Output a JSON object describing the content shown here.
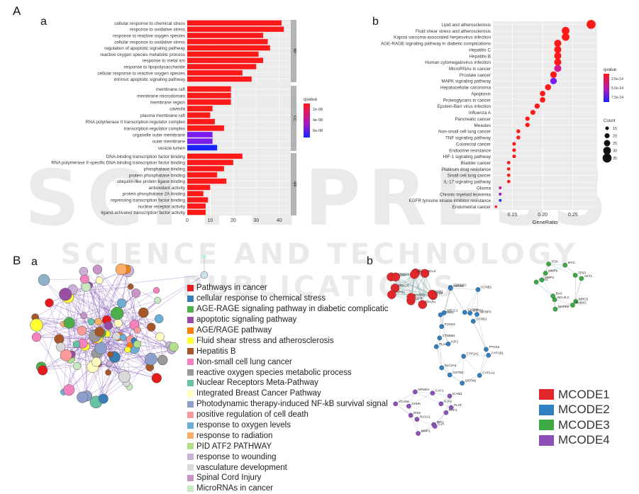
{
  "labels": {
    "A": "A",
    "Aa": "a",
    "Ab": "b",
    "B": "B",
    "Ba": "a",
    "Bb": "b"
  },
  "watermark": {
    "line1": "SCITEPRESS",
    "line2": "SCIENCE AND TECHNOLOGY PUBLICATIONS"
  },
  "chart_data": [
    {
      "type": "bar",
      "title": "",
      "groups": [
        {
          "name": "BP",
          "categories": [
            "cellular response to chemical stress",
            "response to oxidative stress",
            "response to reactive oxygen species",
            "cellular response to oxidative stress",
            "regulation of apoptotic signaling pathway",
            "reactive oxygen species metabolic process",
            "response to metal ion",
            "response to lipopolysaccharide",
            "cellular response to reactive oxygen species",
            "intrinsic apoptotic signaling pathway"
          ],
          "values": [
            41,
            42,
            33,
            35,
            36,
            31,
            33,
            30,
            24,
            28
          ],
          "colors": [
            "#ff1a1a",
            "#ff1a1a",
            "#ff1a1a",
            "#ff1a1a",
            "#ff1a1a",
            "#ff1a1a",
            "#ff1a1a",
            "#ff1a1a",
            "#ff1a1a",
            "#ff1a1a"
          ]
        },
        {
          "name": "CC",
          "categories": [
            "membrane raft",
            "membrane microdomain",
            "membrane region",
            "caveola",
            "plasma membrane raft",
            "RNA polymerase II transcription regulator complex",
            "transcription regulator complex",
            "organelle outer membrane",
            "outer membrane",
            "vesicle lumen"
          ],
          "values": [
            19,
            19,
            19,
            11,
            10,
            12,
            16,
            11,
            11,
            13
          ],
          "colors": [
            "#ff1a1a",
            "#ff1a1a",
            "#ff1a1a",
            "#ff1a1a",
            "#ff1a1a",
            "#ff1a1a",
            "#ff1a1a",
            "#7a1cf0",
            "#7a1cf0",
            "#1a24ff"
          ]
        },
        {
          "name": "MF",
          "categories": [
            "DNA-binding transcription factor binding",
            "RNA polymerase II-specific DNA-binding transcription factor binding",
            "phosphatase binding",
            "protein phosphatase binding",
            "ubiquitin-like protein ligase binding",
            "antioxidant activity",
            "protein phosphatase 2A binding",
            "repressing transcription factor binding",
            "nuclear receptor activity",
            "ligand-activated transcription factor activity"
          ],
          "values": [
            24,
            20,
            16,
            13,
            17,
            10,
            7,
            9,
            8,
            8
          ],
          "colors": [
            "#ff1a1a",
            "#ff1a1a",
            "#ff1a1a",
            "#ff1a1a",
            "#ff1a1a",
            "#ff1a1a",
            "#ff1a1a",
            "#ff1a1a",
            "#ff1a1a",
            "#ff1a1a"
          ]
        }
      ],
      "xticks": [
        0,
        10,
        20,
        30,
        40
      ],
      "xlim": [
        0,
        45
      ],
      "legend": {
        "title": "qvalue",
        "ticks": [
          "2e-08",
          "4e-08",
          "6e-08"
        ]
      },
      "grid": true
    },
    {
      "type": "scatter",
      "title": "",
      "xlabel": "GeneRatio",
      "xticks": [
        0.15,
        0.2,
        0.25
      ],
      "xtick_labels": [
        "0.15",
        "0.20",
        "0.25"
      ],
      "xlim": [
        0.118,
        0.29
      ],
      "categories": [
        "Lipid and atherosclerosis",
        "Fluid shear stress and atherosclerosis",
        "Kaposi sarcoma-associated herpesvirus infection",
        "AGE-RAGE signaling pathway in diabetic complications",
        "Hepatitis C",
        "Hepatitis B",
        "Human cytomegalovirus infection",
        "MicroRNAs in cancer",
        "Prostate cancer",
        "MAPK signaling pathway",
        "Hepatocellular carcinoma",
        "Apoptosis",
        "Proteoglycans in cancer",
        "Epstein-Barr virus infection",
        "Influenza A",
        "Pancreatic cancer",
        "Measles",
        "Non-small cell lung cancer",
        "TNF signaling pathway",
        "Colorectal cancer",
        "Endocrine resistance",
        "HIF-1 signaling pathway",
        "Bladder cancer",
        "Platinum drug resistance",
        "Small cell lung cancer",
        "IL-17 signaling pathway",
        "Glioma",
        "Chronic myeloid leukemia",
        "EGFR tyrosine kinase inhibitor resistance",
        "Endometrial cancer"
      ],
      "x": [
        0.28,
        0.238,
        0.238,
        0.225,
        0.225,
        0.225,
        0.225,
        0.225,
        0.218,
        0.218,
        0.209,
        0.2,
        0.2,
        0.191,
        0.184,
        0.175,
        0.175,
        0.16,
        0.16,
        0.153,
        0.153,
        0.153,
        0.144,
        0.144,
        0.144,
        0.144,
        0.13,
        0.13,
        0.13,
        0.123
      ],
      "count": [
        35,
        30,
        30,
        28,
        28,
        28,
        28,
        28,
        26,
        26,
        24,
        22,
        22,
        21,
        20,
        18,
        18,
        16,
        16,
        15,
        15,
        15,
        14,
        14,
        14,
        14,
        12,
        12,
        12,
        11
      ],
      "colors": [
        "#ff1a1a",
        "#ff1a1a",
        "#ff1a1a",
        "#ff1a1a",
        "#ff1a1a",
        "#ff1a1a",
        "#ff1a1a",
        "#d81b94",
        "#ff1a1a",
        "#7a1cf0",
        "#ff1a1a",
        "#ff1a1a",
        "#ff1a1a",
        "#ff1a1a",
        "#ff1a1a",
        "#ff1a1a",
        "#ff1a1a",
        "#ff1a1a",
        "#ff1a1a",
        "#ff1a1a",
        "#ff1a1a",
        "#ff1a1a",
        "#ff1a1a",
        "#ff1a1a",
        "#ff1a1a",
        "#ff1a1a",
        "#c0158f",
        "#9b18c8",
        "#2238ee",
        "#ff1a1a"
      ],
      "legend": {
        "qtitle": "qvalue",
        "qticks": [
          "2.5e-14",
          "5.0e-14",
          "7.5e-14"
        ],
        "ctitle": "Count",
        "cticks": [
          15,
          20,
          25,
          30,
          35
        ]
      }
    }
  ],
  "network_legend": {
    "items": [
      {
        "label": "Pathways in cancer",
        "color": "#e41a1c"
      },
      {
        "label": "cellular response to chemical stress",
        "color": "#377eb8"
      },
      {
        "label": "AGE-RAGE signaling pathway in diabetic complicatic",
        "color": "#4daf4a"
      },
      {
        "label": "apoptotic signaling pathway",
        "color": "#984ea3"
      },
      {
        "label": "AGE/RAGE pathway",
        "color": "#ff7f00"
      },
      {
        "label": "Fluid shear stress and atherosclerosis",
        "color": "#ffff33"
      },
      {
        "label": "Hepatitis B",
        "color": "#a65628"
      },
      {
        "label": "Non-small cell lung cancer",
        "color": "#f781bf"
      },
      {
        "label": "reactive oxygen species metabolic process",
        "color": "#999999"
      },
      {
        "label": "Nuclear Receptors Meta-Pathway",
        "color": "#66c2a5"
      },
      {
        "label": "Integrated Breast Cancer Pathway",
        "color": "#fffdbf"
      },
      {
        "label": "Photodynamic therapy-induced NF-kB survival signal",
        "color": "#8da0cb"
      },
      {
        "label": "positive regulation of cell death",
        "color": "#fb9a99"
      },
      {
        "label": "response to oxygen levels",
        "color": "#6baed6"
      },
      {
        "label": "response to radiation",
        "color": "#fdae6b"
      },
      {
        "label": "PID ATF2 PATHWAY",
        "color": "#b2df8a"
      },
      {
        "label": "response to wounding",
        "color": "#cab2d6"
      },
      {
        "label": "vasculature development",
        "color": "#d9d9d9"
      },
      {
        "label": "Spinal Cord Injury",
        "color": "#c994c7"
      },
      {
        "label": "MicroRNAs in cancer",
        "color": "#c7e9c0"
      }
    ]
  },
  "mcode": {
    "items": [
      {
        "label": "MCODE1",
        "color": "#e3262c"
      },
      {
        "label": "MCODE2",
        "color": "#2f7fc1"
      },
      {
        "label": "MCODE3",
        "color": "#3ca944"
      },
      {
        "label": "MCODE4",
        "color": "#8e4fb8"
      }
    ],
    "clusters": [
      {
        "name": "MCODE1",
        "color": "#e3262c",
        "genes": [
          "IL1B",
          "PPARA",
          "EGFR",
          "MAPK3",
          "PRKCB",
          "HSPB1",
          "MAPK1",
          "CASP3",
          "JUN",
          "HIF1A",
          "BCL2",
          "ESR1"
        ]
      },
      {
        "name": "MCODE2",
        "color": "#2f7fc1",
        "genes": [
          "CYP1B1",
          "CYP1A2",
          "CYP1A1",
          "GSTM2",
          "GSTM1",
          "SLC2A4",
          "PLAU",
          "CTNNB1",
          "IGF1",
          "ERBB2",
          "FOXO1",
          "XRCC1",
          "CDKN1C",
          "ABCB1",
          "CASP9",
          "CCNB1",
          "GSTP1",
          "IGFBP3",
          "CCND1",
          "PTGS2"
        ]
      },
      {
        "name": "MCODE3",
        "color": "#3ca944",
        "genes": [
          "BIRC5",
          "RUNX2",
          "MAPK8",
          "BCL2L1",
          "BAX",
          "CDH1",
          "MMP2",
          "MMP9",
          "FOS",
          "MYC",
          "TP53",
          "AKT1"
        ]
      },
      {
        "name": "MCODE4",
        "color": "#8e4fb8",
        "genes": [
          "RAF1",
          "IRF1",
          "IL1A",
          "MMP1",
          "RASA1",
          "IRS2",
          "VCAM1",
          "CHUK",
          "NFKBIA",
          "CAV1",
          "GJA1",
          "ICAM1",
          "PLAT"
        ]
      }
    ]
  }
}
